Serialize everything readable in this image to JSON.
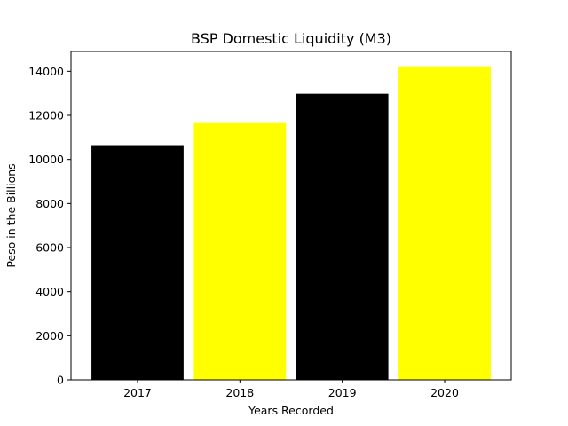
{
  "chart_data": {
    "type": "bar",
    "title": "BSP Domestic Liquidity (M3)",
    "xlabel": "Years Recorded",
    "ylabel": "Peso in the Billions",
    "categories": [
      "2017",
      "2018",
      "2019",
      "2020"
    ],
    "values": [
      10650,
      11650,
      12980,
      14230
    ],
    "bar_colors": [
      "#000000",
      "#ffff00",
      "#000000",
      "#ffff00"
    ],
    "ylim": [
      0,
      14900
    ],
    "yticks": [
      0,
      2000,
      4000,
      6000,
      8000,
      10000,
      12000,
      14000
    ],
    "grid": false,
    "legend": "none"
  }
}
